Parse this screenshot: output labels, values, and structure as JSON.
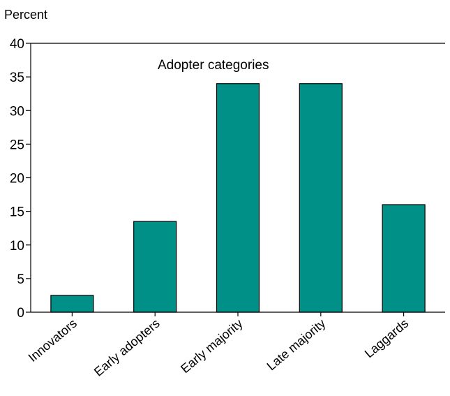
{
  "chart_data": {
    "type": "bar",
    "title": "",
    "annotation": "Adopter categories",
    "ylabel": "Percent",
    "xlabel": "",
    "categories": [
      "Innovators",
      "Early adopters",
      "Early majority",
      "Late majority",
      "Laggards"
    ],
    "values": [
      2.5,
      13.5,
      34,
      34,
      16
    ],
    "ylim": [
      0,
      40
    ],
    "yticks": [
      "0",
      "5",
      "10",
      "15",
      "20",
      "25",
      "30",
      "35",
      "40"
    ],
    "grid": false,
    "legend": "none",
    "bar_color": "#009088",
    "bar_edge_color": "#000000"
  }
}
